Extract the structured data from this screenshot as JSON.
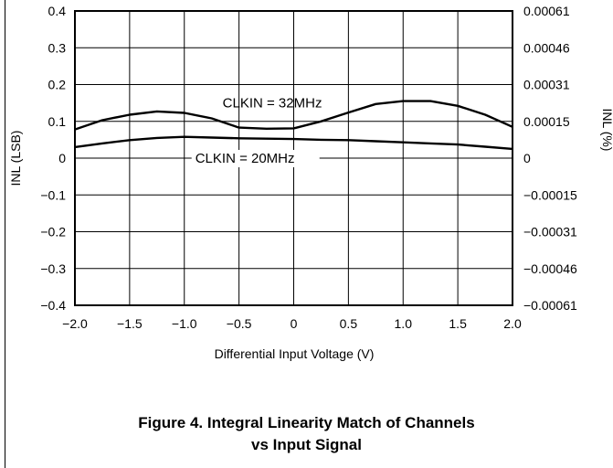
{
  "chart_data": {
    "type": "line",
    "title": "",
    "xlabel": "Differential Input Voltage (V)",
    "ylabel": "INL (LSB)",
    "y2label": "INL (%)",
    "xlim": [
      -2.0,
      2.0
    ],
    "ylim": [
      -0.4,
      0.4
    ],
    "grid": true,
    "x_ticks": [
      -2.0,
      -1.5,
      -1.0,
      -0.5,
      0,
      0.5,
      1.0,
      1.5,
      2.0
    ],
    "x_tick_labels": [
      "−2.0",
      "−1.5",
      "−1.0",
      "−0.5",
      "0",
      "0.5",
      "1.0",
      "1.5",
      "2.0"
    ],
    "y_ticks": [
      0.4,
      0.3,
      0.2,
      0.1,
      0,
      -0.1,
      -0.2,
      -0.3,
      -0.4
    ],
    "y_tick_labels": [
      "0.4",
      "0.3",
      "0.2",
      "0.1",
      "0",
      "−0.1",
      "−0.2",
      "−0.3",
      "−0.4"
    ],
    "y2_tick_labels": [
      "0.00061",
      "0.00046",
      "0.00031",
      "0.00015",
      "0",
      "−0.00015",
      "−0.00031",
      "−0.00046",
      "−0.00061"
    ],
    "series": [
      {
        "name": "CLKIN = 32MHz",
        "x": [
          -2.0,
          -1.75,
          -1.5,
          -1.25,
          -1.0,
          -0.75,
          -0.5,
          -0.25,
          0.0,
          0.25,
          0.5,
          0.75,
          1.0,
          1.25,
          1.5,
          1.75,
          2.0
        ],
        "values": [
          0.078,
          0.103,
          0.118,
          0.127,
          0.123,
          0.108,
          0.083,
          0.08,
          0.081,
          0.1,
          0.124,
          0.147,
          0.155,
          0.155,
          0.142,
          0.118,
          0.085
        ]
      },
      {
        "name": "CLKIN = 20MHz",
        "x": [
          -2.0,
          -1.75,
          -1.5,
          -1.25,
          -1.0,
          -0.75,
          -0.5,
          -0.25,
          0.0,
          0.25,
          0.5,
          0.75,
          1.0,
          1.25,
          1.5,
          1.75,
          2.0
        ],
        "values": [
          0.03,
          0.04,
          0.049,
          0.055,
          0.058,
          0.056,
          0.054,
          0.053,
          0.052,
          0.05,
          0.049,
          0.046,
          0.043,
          0.04,
          0.037,
          0.031,
          0.025
        ]
      }
    ],
    "annotations": [
      {
        "text": "CLKIN = 32MHz",
        "series": 0
      },
      {
        "text": "CLKIN = 20MHz",
        "series": 1
      }
    ]
  },
  "caption": {
    "line1": "Figure 4. Integral Linearity Match of Channels",
    "line2": "vs Input Signal"
  }
}
